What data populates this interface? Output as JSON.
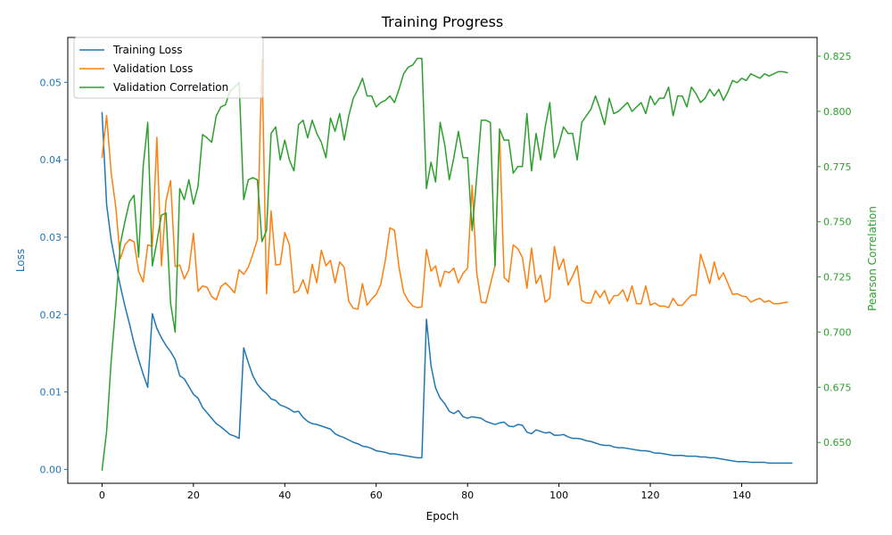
{
  "chart_data": {
    "type": "line",
    "title": "Training Progress",
    "xlabel": "Epoch",
    "ylabel_left": "Loss",
    "ylabel_right": "Pearson Correlation",
    "xlim": [
      -7.5,
      156.5
    ],
    "ylim_left": [
      -0.0018,
      0.0558
    ],
    "ylim_right": [
      0.6315,
      0.8335
    ],
    "xticks": [
      0,
      20,
      40,
      60,
      80,
      100,
      120,
      140
    ],
    "yticks_left": [
      "0.00",
      "0.01",
      "0.02",
      "0.03",
      "0.04",
      "0.05"
    ],
    "yticks_right": [
      "0.650",
      "0.675",
      "0.700",
      "0.725",
      "0.750",
      "0.775",
      "0.800",
      "0.825"
    ],
    "legend_position": "upper-left",
    "grid": false,
    "colors": {
      "training_loss": "#1f77b4",
      "validation_loss": "#ff7f0e",
      "validation_correlation": "#2ca02c"
    },
    "series": [
      {
        "name": "Training Loss",
        "axis": "left",
        "color": "#1f77b4",
        "x_start": 0,
        "values": [
          0.0461,
          0.0342,
          0.0296,
          0.0265,
          0.0237,
          0.0211,
          0.0188,
          0.0163,
          0.0142,
          0.0123,
          0.0106,
          0.0201,
          0.0182,
          0.017,
          0.016,
          0.0152,
          0.0142,
          0.0121,
          0.0117,
          0.0107,
          0.0097,
          0.0092,
          0.008,
          0.0073,
          0.0066,
          0.0059,
          0.0055,
          0.005,
          0.0045,
          0.0043,
          0.004,
          0.0157,
          0.0138,
          0.0121,
          0.011,
          0.0103,
          0.0098,
          0.0091,
          0.0089,
          0.0083,
          0.0081,
          0.0078,
          0.0074,
          0.0075,
          0.0067,
          0.0062,
          0.0059,
          0.0058,
          0.0056,
          0.0054,
          0.0052,
          0.0046,
          0.0043,
          0.0041,
          0.0038,
          0.0035,
          0.0033,
          0.003,
          0.0029,
          0.0027,
          0.0024,
          0.0023,
          0.0022,
          0.002,
          0.002,
          0.0019,
          0.0018,
          0.0017,
          0.0016,
          0.0015,
          0.0015,
          0.0194,
          0.0134,
          0.0105,
          0.0092,
          0.0085,
          0.0075,
          0.0072,
          0.0076,
          0.0068,
          0.0066,
          0.0068,
          0.0067,
          0.0066,
          0.0062,
          0.006,
          0.0058,
          0.006,
          0.0061,
          0.0056,
          0.0055,
          0.0058,
          0.0057,
          0.0048,
          0.0046,
          0.0051,
          0.0049,
          0.0047,
          0.0048,
          0.0044,
          0.0044,
          0.0045,
          0.0042,
          0.004,
          0.004,
          0.0039,
          0.0037,
          0.0036,
          0.0034,
          0.0032,
          0.0031,
          0.0031,
          0.0029,
          0.0028,
          0.0028,
          0.0027,
          0.0026,
          0.0025,
          0.0024,
          0.0024,
          0.0023,
          0.0021,
          0.0021,
          0.002,
          0.0019,
          0.0018,
          0.0018,
          0.0018,
          0.0017,
          0.0017,
          0.0017,
          0.0016,
          0.0016,
          0.0015,
          0.0015,
          0.0014,
          0.0013,
          0.0012,
          0.0011,
          0.001,
          0.001,
          0.001,
          0.0009,
          0.0009,
          0.0009,
          0.0009,
          0.0008,
          0.0008,
          0.0008,
          0.0008,
          0.0008,
          0.0008
        ]
      },
      {
        "name": "Validation Loss",
        "axis": "left",
        "color": "#ff7f0e",
        "x_start": 0,
        "values": [
          0.0403,
          0.0457,
          0.0383,
          0.0339,
          0.0272,
          0.029,
          0.0297,
          0.0294,
          0.0256,
          0.0242,
          0.029,
          0.0288,
          0.0429,
          0.0263,
          0.0347,
          0.0373,
          0.0262,
          0.0264,
          0.0246,
          0.0258,
          0.0305,
          0.023,
          0.0237,
          0.0235,
          0.0223,
          0.0219,
          0.0236,
          0.0241,
          0.0235,
          0.0228,
          0.0258,
          0.0252,
          0.0261,
          0.0278,
          0.0297,
          0.053,
          0.0227,
          0.0334,
          0.0264,
          0.0265,
          0.0306,
          0.029,
          0.0228,
          0.0231,
          0.0245,
          0.0227,
          0.0265,
          0.0241,
          0.0283,
          0.0263,
          0.027,
          0.0241,
          0.0268,
          0.0261,
          0.0217,
          0.0208,
          0.0207,
          0.024,
          0.0212,
          0.022,
          0.0226,
          0.0239,
          0.027,
          0.0312,
          0.0309,
          0.0261,
          0.0229,
          0.0218,
          0.0211,
          0.0209,
          0.021,
          0.0284,
          0.0256,
          0.0263,
          0.0236,
          0.0256,
          0.0254,
          0.026,
          0.0241,
          0.0253,
          0.026,
          0.0367,
          0.0254,
          0.0216,
          0.0215,
          0.0239,
          0.0263,
          0.0436,
          0.0248,
          0.0242,
          0.029,
          0.0285,
          0.0274,
          0.0234,
          0.0286,
          0.024,
          0.0251,
          0.0216,
          0.0221,
          0.0288,
          0.0258,
          0.0272,
          0.0238,
          0.025,
          0.0263,
          0.0218,
          0.0215,
          0.0215,
          0.0231,
          0.0222,
          0.0231,
          0.0214,
          0.0224,
          0.0225,
          0.0232,
          0.0217,
          0.0237,
          0.0214,
          0.0214,
          0.0237,
          0.0212,
          0.0215,
          0.0211,
          0.0211,
          0.0209,
          0.0221,
          0.0212,
          0.0212,
          0.0219,
          0.0225,
          0.0225,
          0.0278,
          0.026,
          0.024,
          0.0268,
          0.0245,
          0.0254,
          0.024,
          0.0226,
          0.0227,
          0.0224,
          0.0223,
          0.0216,
          0.0219,
          0.0221,
          0.0216,
          0.0218,
          0.0214,
          0.0214,
          0.0215,
          0.0216
        ]
      },
      {
        "name": "Validation Correlation",
        "axis": "right",
        "color": "#2ca02c",
        "x_start": 0,
        "values": [
          0.6375,
          0.655,
          0.687,
          0.712,
          0.74,
          0.75,
          0.759,
          0.762,
          0.734,
          0.775,
          0.795,
          0.73,
          0.741,
          0.753,
          0.754,
          0.713,
          0.7,
          0.765,
          0.76,
          0.769,
          0.758,
          0.766,
          0.7895,
          0.788,
          0.786,
          0.798,
          0.802,
          0.803,
          0.809,
          0.811,
          0.813,
          0.76,
          0.769,
          0.77,
          0.769,
          0.741,
          0.746,
          0.79,
          0.793,
          0.778,
          0.787,
          0.778,
          0.773,
          0.794,
          0.796,
          0.788,
          0.796,
          0.79,
          0.786,
          0.779,
          0.797,
          0.791,
          0.799,
          0.787,
          0.798,
          0.806,
          0.81,
          0.815,
          0.807,
          0.807,
          0.802,
          0.804,
          0.805,
          0.807,
          0.804,
          0.81,
          0.817,
          0.82,
          0.821,
          0.824,
          0.824,
          0.765,
          0.777,
          0.768,
          0.795,
          0.785,
          0.769,
          0.779,
          0.791,
          0.779,
          0.779,
          0.746,
          0.77,
          0.796,
          0.796,
          0.795,
          0.73,
          0.792,
          0.787,
          0.787,
          0.772,
          0.775,
          0.775,
          0.799,
          0.773,
          0.79,
          0.778,
          0.793,
          0.804,
          0.779,
          0.785,
          0.793,
          0.79,
          0.79,
          0.778,
          0.795,
          0.798,
          0.801,
          0.807,
          0.801,
          0.794,
          0.806,
          0.799,
          0.8,
          0.802,
          0.804,
          0.8,
          0.802,
          0.804,
          0.799,
          0.807,
          0.803,
          0.806,
          0.806,
          0.811,
          0.798,
          0.807,
          0.807,
          0.802,
          0.811,
          0.808,
          0.804,
          0.806,
          0.81,
          0.807,
          0.81,
          0.805,
          0.809,
          0.814,
          0.813,
          0.815,
          0.814,
          0.817,
          0.816,
          0.815,
          0.817,
          0.816,
          0.817,
          0.818,
          0.818,
          0.8175
        ]
      }
    ]
  }
}
